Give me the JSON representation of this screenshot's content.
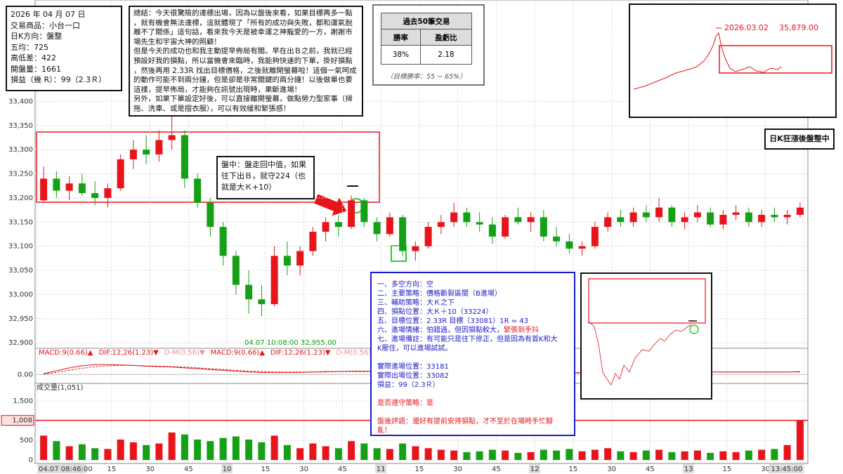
{
  "info_box": {
    "lines": [
      "2026 年 04 月 07 日",
      "交易商品：小台一口",
      "日K方向：盤整",
      "五均：725",
      "高低差：422",
      "開盤量：1661",
      "損益（幾 R）：99（2.3Ｒ）"
    ]
  },
  "summary": {
    "lines": [
      "總結：今天很驚險的達標出場，因為以盤後來看，如果目標再多一點",
      "，就有機會無法達標，這就體現了「所有的成功與失敗，都和運氣脫",
      "離不了關係」這句話，看來我今天是被幸運之神寵愛的一方，謝謝市",
      "場先生和宇宙大神的照顧！",
      "但是今天的成功也和我主動提早佈局有關。早在出Ｂ之前，我就已經",
      "預設好我的損點，所以當機會來臨時，我能夠快速的下單，掛好損點",
      "，然後再用 2.33R 找出目標價格，之後就離開螢幕啦！這個一氣呵成",
      "的動作可能不到兩分鐘，但是卻是非常關鍵的兩分鐘！以後做單也要",
      "這樣，提早佈局，才能夠在訊號出現時，果斷進場！",
      "另外，如果下單設定好後，可以直接離開螢幕，做點勞力型家事（掃",
      "拖、洗車、或是摺衣服），可以有效緩和緊張感！"
    ]
  },
  "stats_table": {
    "title": "過去50筆交易",
    "headers": [
      "勝率",
      "盈虧比"
    ],
    "row": [
      "38%",
      "2.18"
    ],
    "note": "（目標勝率：55 ~ 65%）"
  },
  "daily_inset": {
    "date": "2026.03.02",
    "price": "35,879.00"
  },
  "daily_note": "日K狂漲後盤整中",
  "callout": {
    "lines": [
      "盤中：盤走回中值，如果",
      "往下出Ｂ，就守224（也",
      "就是大Ｋ+10）"
    ]
  },
  "plan_box": {
    "paragraphs": [
      [
        [
          {
            "t": "一、多空方向：空",
            "c": "#1a1acc"
          }
        ],
        [
          {
            "t": "二、主要策略：價格斷裂區間（B進場）",
            "c": "#1a1acc"
          }
        ],
        [
          {
            "t": "三、輔助策略：大Ｋ之下",
            "c": "#1a1acc"
          }
        ],
        [
          {
            "t": "四、損點位置：大Ｋ＋10（33224）",
            "c": "#1a1acc"
          }
        ],
        [
          {
            "t": "五、目標位置：2.33R 目標（33081）1R = 43",
            "c": "#1a1acc"
          }
        ],
        [
          {
            "t": "六、進場情緒：怕錯過，但因損點較大，",
            "c": "#1a1acc"
          },
          {
            "t": "緊張到手抖",
            "c": "#e8141b"
          }
        ],
        [
          {
            "t": "七、進場備註：有可能只是往下修正，但是因為有首K和大",
            "c": "#1a1acc"
          }
        ],
        [
          {
            "t": "K壓住，可以進場試試。",
            "c": "#1a1acc"
          }
        ]
      ],
      [
        [
          {
            "t": "實際進場位置：33181",
            "c": "#1a1acc"
          }
        ],
        [
          {
            "t": "實際出場位置：33082",
            "c": "#1a1acc"
          }
        ],
        [
          {
            "t": "損益：99（2.3Ｒ）",
            "c": "#1a1acc"
          }
        ]
      ],
      [
        [
          {
            "t": "是否遵守策略：是",
            "c": "#e8141b"
          }
        ]
      ],
      [
        [
          {
            "t": "盤後評語：還好有提前安排損點，才不至於在場時手忙腳",
            "c": "#e8141b"
          }
        ],
        [
          {
            "t": "亂！",
            "c": "#e8141b"
          }
        ]
      ]
    ]
  },
  "chart_data": [
    {
      "type": "candlestick",
      "up_color": "#e8141b",
      "down_color": "#16a016",
      "grid": true,
      "x": [
        "08:46",
        "08:51",
        "08:56",
        "09:01",
        "09:06",
        "09:11",
        "09:16",
        "09:21",
        "09:26",
        "09:31",
        "09:36",
        "09:41",
        "09:46",
        "09:51",
        "09:56",
        "10:01",
        "10:06",
        "10:11",
        "10:16",
        "10:21",
        "10:26",
        "10:31",
        "10:36",
        "10:41",
        "10:46",
        "10:51",
        "10:56",
        "11:01",
        "11:06",
        "11:11",
        "11:16",
        "11:21",
        "11:26",
        "11:31",
        "11:36",
        "11:41",
        "11:46",
        "11:51",
        "11:56",
        "12:01",
        "12:06",
        "12:11",
        "12:16",
        "12:21",
        "12:26",
        "12:31",
        "12:36",
        "12:41",
        "12:46",
        "12:51",
        "12:56",
        "13:01",
        "13:06",
        "13:11",
        "13:16",
        "13:21",
        "13:26",
        "13:31",
        "13:36",
        "13:41"
      ],
      "open": [
        33195,
        33240,
        33215,
        33230,
        33210,
        33200,
        33220,
        33280,
        33300,
        33290,
        33320,
        33330,
        33240,
        33190,
        33140,
        33080,
        33020,
        32990,
        32980,
        33080,
        33060,
        33090,
        33130,
        33150,
        33140,
        33195,
        33150,
        33125,
        33160,
        33090,
        33100,
        33140,
        33150,
        33170,
        33150,
        33145,
        33120,
        33160,
        33150,
        33160,
        33120,
        33110,
        33095,
        33100,
        33140,
        33160,
        33150,
        33170,
        33160,
        33180,
        33150,
        33160,
        33170,
        33145,
        33165,
        33170,
        33150,
        33165,
        33160,
        33165
      ],
      "high": [
        33265,
        33255,
        33245,
        33250,
        33235,
        33230,
        33290,
        33320,
        33330,
        33340,
        33375,
        33340,
        33250,
        33200,
        33150,
        33090,
        33050,
        33020,
        33100,
        33110,
        33100,
        33140,
        33160,
        33165,
        33205,
        33200,
        33160,
        33170,
        33165,
        33110,
        33150,
        33165,
        33190,
        33180,
        33170,
        33160,
        33165,
        33180,
        33170,
        33175,
        33140,
        33125,
        33110,
        33150,
        33170,
        33175,
        33180,
        33185,
        33200,
        33185,
        33170,
        33185,
        33180,
        33175,
        33185,
        33180,
        33175,
        33180,
        33175,
        33190
      ],
      "low": [
        33190,
        33200,
        33195,
        33205,
        33185,
        33180,
        33215,
        33260,
        33270,
        33275,
        33300,
        33220,
        33180,
        33120,
        33060,
        33000,
        32960,
        32955,
        32975,
        33040,
        33040,
        33080,
        33110,
        33120,
        33135,
        33140,
        33110,
        33120,
        33080,
        33070,
        33095,
        33125,
        33140,
        33140,
        33130,
        33105,
        33115,
        33145,
        33130,
        33110,
        33100,
        33085,
        33080,
        33095,
        33130,
        33140,
        33140,
        33150,
        33150,
        33140,
        33135,
        33150,
        33140,
        33135,
        33155,
        33140,
        33140,
        33150,
        33145,
        33160
      ],
      "close": [
        33240,
        33215,
        33230,
        33210,
        33200,
        33220,
        33280,
        33300,
        33290,
        33320,
        33330,
        33240,
        33190,
        33140,
        33080,
        33020,
        32990,
        32980,
        33080,
        33060,
        33090,
        33130,
        33150,
        33140,
        33195,
        33150,
        33125,
        33160,
        33090,
        33100,
        33140,
        33150,
        33170,
        33150,
        33145,
        33120,
        33160,
        33150,
        33160,
        33120,
        33110,
        33095,
        33100,
        33140,
        33160,
        33150,
        33170,
        33160,
        33180,
        33150,
        33160,
        33170,
        33145,
        33165,
        33170,
        33150,
        33165,
        33160,
        33165,
        33180
      ],
      "ylim": [
        32890,
        33610
      ],
      "yticks": [
        {
          "value": 32900,
          "label": "32,900"
        },
        {
          "value": 32950,
          "label": "32,950"
        },
        {
          "value": 33000,
          "label": "33,000"
        },
        {
          "value": 33050,
          "label": "33,050"
        },
        {
          "value": 33100,
          "label": "33,100"
        },
        {
          "value": 33150,
          "label": "33,150"
        },
        {
          "value": 33200,
          "label": "33,200"
        },
        {
          "value": 33250,
          "label": "33,250"
        },
        {
          "value": 33300,
          "label": "33,300"
        },
        {
          "value": 33350,
          "label": "33,350"
        },
        {
          "value": 33400,
          "label": "33,400"
        }
      ],
      "xticks": [
        {
          "value": "08:46",
          "label": "04.07 08:46:00"
        },
        {
          "value": "09:15",
          "label": "15"
        },
        {
          "value": "09:30",
          "label": "30"
        },
        {
          "value": "09:45",
          "label": "45"
        },
        {
          "value": "10:00",
          "label": "10"
        },
        {
          "value": "10:15",
          "label": "15"
        },
        {
          "value": "10:30",
          "label": "30"
        },
        {
          "value": "10:45",
          "label": "45"
        },
        {
          "value": "11:00",
          "label": "11"
        },
        {
          "value": "11:15",
          "label": "15"
        },
        {
          "value": "11:30",
          "label": "30"
        },
        {
          "value": "11:45",
          "label": "45"
        },
        {
          "value": "12:00",
          "label": "12"
        },
        {
          "value": "12:15",
          "label": "15"
        },
        {
          "value": "12:30",
          "label": "30"
        },
        {
          "value": "12:45",
          "label": "45"
        },
        {
          "value": "13:00",
          "label": "13"
        },
        {
          "value": "13:15",
          "label": "15"
        },
        {
          "value": "13:30",
          "label": "30"
        },
        {
          "value": "13:45",
          "label": "13:45:00"
        }
      ],
      "low_label": "04.07 10:08:00  32,955.00"
    },
    {
      "type": "line",
      "legend": [
        {
          "text": "MACD:9(0.66)▲",
          "color": "#e8141b"
        },
        {
          "text": "DIF:12,26(1.23)▼",
          "color": "#e8141b"
        },
        {
          "text": "D-M(0.56)▼",
          "color": "#f09090"
        },
        {
          "text": "MACD:9(0.66)▲",
          "color": "#e8141b"
        },
        {
          "text": "DIF:12,26(1.23)▼",
          "color": "#e8141b"
        },
        {
          "text": "D-M(0.56)▼",
          "color": "#f09090"
        }
      ],
      "ylim": [
        -2,
        6
      ],
      "yticks": [
        {
          "value": 0,
          "label": "0.00"
        }
      ],
      "series": [
        {
          "color": "#e8141b",
          "values": [
            0.2,
            0.9,
            1.6,
            2.1,
            2.4,
            2.4,
            2.3,
            2.2,
            2.0,
            1.9,
            1.8,
            1.6,
            1.4,
            1.2,
            1.0,
            0.8,
            0.6,
            0.5,
            0.5,
            0.5,
            0.5,
            0.6,
            0.7,
            0.7,
            0.8,
            0.8,
            0.7,
            0.7,
            0.6,
            0.5,
            0.5,
            0.5,
            0.6,
            0.6,
            0.6,
            0.5,
            0.5,
            0.5,
            0.6,
            0.5,
            0.4,
            0.4,
            0.4,
            0.5,
            0.6,
            0.6,
            0.6,
            0.6,
            0.7,
            0.6,
            0.6,
            0.6,
            0.6,
            0.6,
            0.6,
            0.6,
            0.6,
            0.6,
            0.6,
            0.7
          ]
        },
        {
          "color": "#c02020",
          "values": [
            0.1,
            0.5,
            1.0,
            1.5,
            1.9,
            2.1,
            2.2,
            2.2,
            2.1,
            2.0,
            1.9,
            1.8,
            1.6,
            1.4,
            1.2,
            1.0,
            0.8,
            0.7,
            0.6,
            0.6,
            0.6,
            0.6,
            0.6,
            0.7,
            0.7,
            0.7,
            0.7,
            0.7,
            0.7,
            0.6,
            0.6,
            0.6,
            0.6,
            0.6,
            0.6,
            0.6,
            0.6,
            0.6,
            0.6,
            0.6,
            0.5,
            0.5,
            0.5,
            0.5,
            0.5,
            0.5,
            0.6,
            0.6,
            0.6,
            0.6,
            0.6,
            0.6,
            0.6,
            0.6,
            0.6,
            0.6,
            0.6,
            0.6,
            0.6,
            0.6
          ]
        }
      ]
    },
    {
      "type": "bar",
      "title": "成交量(1,051)",
      "ylim": [
        0,
        1700
      ],
      "yticks": [
        0,
        500,
        {
          "value": 1500,
          "label": "1,500"
        }
      ],
      "values": [
        620,
        480,
        350,
        400,
        300,
        280,
        520,
        450,
        380,
        420,
        700,
        650,
        520,
        480,
        560,
        600,
        520,
        450,
        620,
        380,
        300,
        420,
        350,
        300,
        480,
        420,
        300,
        280,
        420,
        350,
        300,
        260,
        240,
        200,
        220,
        260,
        240,
        180,
        200,
        260,
        240,
        280,
        220,
        260,
        300,
        220,
        200,
        240,
        260,
        200,
        220,
        240,
        180,
        220,
        200,
        240,
        260,
        280,
        380,
        1008
      ],
      "last_marker": {
        "value": 1008,
        "label": "1,008"
      },
      "marker_color": "#e8141b"
    }
  ]
}
